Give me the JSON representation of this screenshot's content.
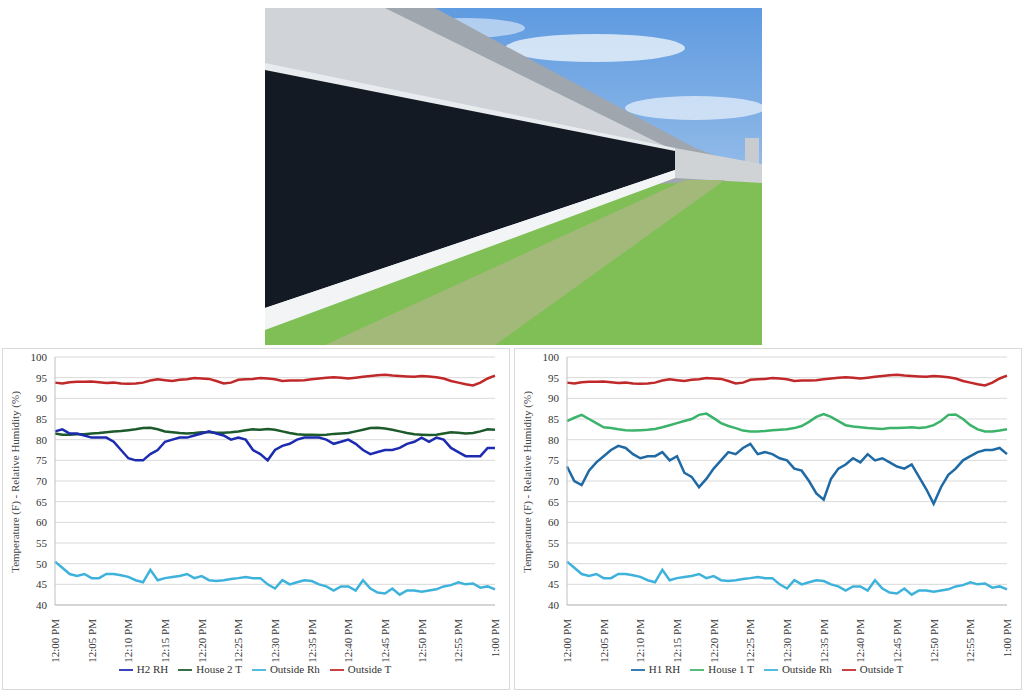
{
  "chart_data": [
    {
      "type": "line",
      "y_label": "Temperature (F) - Relative Humidity (%)",
      "categories": [
        "12:00 PM",
        null,
        null,
        null,
        null,
        "12:05 PM",
        null,
        null,
        null,
        null,
        "12:10 PM",
        null,
        null,
        null,
        null,
        "12:15 PM",
        null,
        null,
        null,
        null,
        "12:20 PM",
        null,
        null,
        null,
        null,
        "12:25 PM",
        null,
        null,
        null,
        null,
        "12:30 PM",
        null,
        null,
        null,
        null,
        "12:35 PM",
        null,
        null,
        null,
        null,
        "12:40 PM",
        null,
        null,
        null,
        null,
        "12:45 PM",
        null,
        null,
        null,
        null,
        "12:50 PM",
        null,
        null,
        null,
        null,
        "12:55 PM",
        null,
        null,
        null,
        null,
        "1:00 PM"
      ],
      "ylim": [
        40,
        100
      ],
      "yticks": [
        40,
        45,
        50,
        55,
        60,
        65,
        70,
        75,
        80,
        85,
        90,
        95,
        100
      ],
      "grid": true,
      "legend": "bottom",
      "series": [
        {
          "name": "House 2 T",
          "color": "#1d5a2c",
          "values": [
            81.5,
            81.2,
            81.2,
            81.3,
            81.3,
            81.5,
            81.6,
            81.8,
            82,
            82.1,
            82.3,
            82.5,
            82.8,
            82.9,
            82.5,
            82,
            81.8,
            81.6,
            81.5,
            81.6,
            81.8,
            81.8,
            81.7,
            81.7,
            81.8,
            82,
            82.3,
            82.5,
            82.4,
            82.6,
            82.4,
            82,
            81.6,
            81.3,
            81.2,
            81.2,
            81.1,
            81.2,
            81.4,
            81.5,
            81.6,
            82,
            82.4,
            82.8,
            82.9,
            82.7,
            82.4,
            82,
            81.6,
            81.3,
            81.2,
            81.1,
            81.2,
            81.5,
            81.8,
            81.7,
            81.5,
            81.6,
            82,
            82.5,
            82.4
          ]
        },
        {
          "name": "H2 RH",
          "color": "#1c2bb0",
          "values": [
            82,
            82.5,
            81.5,
            81.5,
            81,
            80.5,
            80.5,
            80.5,
            79.5,
            77.5,
            75.5,
            75,
            75,
            76.5,
            77.5,
            79.5,
            80,
            80.5,
            80.5,
            81,
            81.5,
            82,
            81.5,
            81,
            80,
            80.5,
            80,
            77.5,
            76.5,
            75,
            77.5,
            78.5,
            79,
            80,
            80.5,
            80.5,
            80.5,
            80,
            79,
            79.5,
            80,
            79,
            77.5,
            76.5,
            77,
            77.5,
            77.5,
            78,
            79,
            79.5,
            80.5,
            79.5,
            80.5,
            80,
            78,
            77,
            76,
            76,
            76,
            78,
            78
          ]
        },
        {
          "name": "Outside T",
          "color": "#c0282a",
          "values": [
            93.8,
            93.6,
            93.9,
            94,
            94,
            94.1,
            93.9,
            93.7,
            93.8,
            93.6,
            93.5,
            93.6,
            93.8,
            94.3,
            94.6,
            94.4,
            94.2,
            94.5,
            94.6,
            94.9,
            94.8,
            94.7,
            94.2,
            93.6,
            93.8,
            94.5,
            94.6,
            94.7,
            94.9,
            94.8,
            94.6,
            94.2,
            94.3,
            94.3,
            94.4,
            94.6,
            94.8,
            95,
            95.1,
            95,
            94.8,
            95,
            95.2,
            95.4,
            95.6,
            95.7,
            95.5,
            95.4,
            95.3,
            95.2,
            95.4,
            95.3,
            95.1,
            94.8,
            94.2,
            93.8,
            93.4,
            93.1,
            93.8,
            94.8,
            95.5
          ]
        },
        {
          "name": "Outside Rh",
          "color": "#3fb2dc",
          "values": [
            50.5,
            49,
            47.5,
            47,
            47.5,
            46.5,
            46.5,
            47.5,
            47.5,
            47.2,
            46.8,
            46,
            45.5,
            48.5,
            46,
            46.5,
            46.8,
            47,
            47.5,
            46.5,
            47,
            46,
            45.8,
            46,
            46.3,
            46.5,
            46.8,
            46.5,
            46.5,
            45,
            44,
            46,
            45,
            45.5,
            46,
            45.8,
            45,
            44.5,
            43.5,
            44.5,
            44.5,
            43.5,
            46,
            44,
            43,
            42.8,
            44,
            42.5,
            43.5,
            43.5,
            43.2,
            43.5,
            43.8,
            44.5,
            44.8,
            45.5,
            45,
            45.2,
            44.2,
            44.5,
            43.8
          ]
        }
      ]
    },
    {
      "type": "line",
      "y_label": "Temperature (F) - Relative Humidity (%)",
      "categories": [
        "12:00 PM",
        null,
        null,
        null,
        null,
        "12:05 PM",
        null,
        null,
        null,
        null,
        "12:10 PM",
        null,
        null,
        null,
        null,
        "12:15 PM",
        null,
        null,
        null,
        null,
        "12:20 PM",
        null,
        null,
        null,
        null,
        "12:25 PM",
        null,
        null,
        null,
        null,
        "12:30 PM",
        null,
        null,
        null,
        null,
        "12:35 PM",
        null,
        null,
        null,
        null,
        "12:40 PM",
        null,
        null,
        null,
        null,
        "12:45 PM",
        null,
        null,
        null,
        null,
        "12:50 PM",
        null,
        null,
        null,
        null,
        "12:55 PM",
        null,
        null,
        null,
        null,
        "1:00 PM"
      ],
      "ylim": [
        40,
        100
      ],
      "yticks": [
        40,
        45,
        50,
        55,
        60,
        65,
        70,
        75,
        80,
        85,
        90,
        95,
        100
      ],
      "grid": true,
      "legend": "bottom",
      "series": [
        {
          "name": "House 1 T",
          "color": "#3cb36a",
          "values": [
            84.5,
            85.3,
            86,
            85,
            84,
            83,
            82.8,
            82.5,
            82.3,
            82.2,
            82.3,
            82.4,
            82.6,
            83,
            83.5,
            84,
            84.5,
            85,
            86,
            86.3,
            85.2,
            84,
            83.3,
            82.8,
            82.2,
            82,
            82,
            82.1,
            82.3,
            82.4,
            82.5,
            82.8,
            83.3,
            84.3,
            85.5,
            86.2,
            85.5,
            84.5,
            83.5,
            83.2,
            83,
            82.8,
            82.7,
            82.6,
            82.8,
            82.8,
            82.9,
            83,
            82.8,
            83,
            83.5,
            84.5,
            86,
            86.1,
            85,
            83.5,
            82.5,
            82,
            82,
            82.2,
            82.5
          ]
        },
        {
          "name": "H1 RH",
          "color": "#1f6aa5",
          "values": [
            73.5,
            70,
            69,
            72.5,
            74.5,
            76,
            77.5,
            78.5,
            78,
            76.5,
            75.5,
            76,
            76,
            77,
            75,
            76,
            72,
            71,
            68.5,
            70.5,
            73,
            75,
            77,
            76.5,
            78,
            79,
            76.5,
            77,
            76.5,
            75.5,
            75,
            73,
            72.5,
            70,
            67,
            65.5,
            70.5,
            73,
            74,
            75.5,
            74.5,
            76.5,
            75,
            75.5,
            74.5,
            73.5,
            73,
            74,
            71,
            68,
            64.5,
            68.5,
            71.5,
            73,
            75,
            76,
            77,
            77.5,
            77.5,
            78,
            76.5
          ]
        },
        {
          "name": "Outside T",
          "color": "#c0282a",
          "values": [
            93.8,
            93.6,
            93.9,
            94,
            94,
            94.1,
            93.9,
            93.7,
            93.8,
            93.6,
            93.5,
            93.6,
            93.8,
            94.3,
            94.6,
            94.4,
            94.2,
            94.5,
            94.6,
            94.9,
            94.8,
            94.7,
            94.2,
            93.6,
            93.8,
            94.5,
            94.6,
            94.7,
            94.9,
            94.8,
            94.6,
            94.2,
            94.3,
            94.3,
            94.4,
            94.6,
            94.8,
            95,
            95.1,
            95,
            94.8,
            95,
            95.2,
            95.4,
            95.6,
            95.7,
            95.5,
            95.4,
            95.3,
            95.2,
            95.4,
            95.3,
            95.1,
            94.8,
            94.2,
            93.8,
            93.4,
            93.1,
            93.8,
            94.8,
            95.5
          ]
        },
        {
          "name": "Outside Rh",
          "color": "#3fb2dc",
          "values": [
            50.5,
            49,
            47.5,
            47,
            47.5,
            46.5,
            46.5,
            47.5,
            47.5,
            47.2,
            46.8,
            46,
            45.5,
            48.5,
            46,
            46.5,
            46.8,
            47,
            47.5,
            46.5,
            47,
            46,
            45.8,
            46,
            46.3,
            46.5,
            46.8,
            46.5,
            46.5,
            45,
            44,
            46,
            45,
            45.5,
            46,
            45.8,
            45,
            44.5,
            43.5,
            44.5,
            44.5,
            43.5,
            46,
            44,
            43,
            42.8,
            44,
            42.5,
            43.5,
            43.5,
            43.2,
            43.5,
            43.8,
            44.5,
            44.8,
            45.5,
            45,
            45.2,
            44.2,
            44.5,
            43.8
          ]
        }
      ]
    }
  ]
}
